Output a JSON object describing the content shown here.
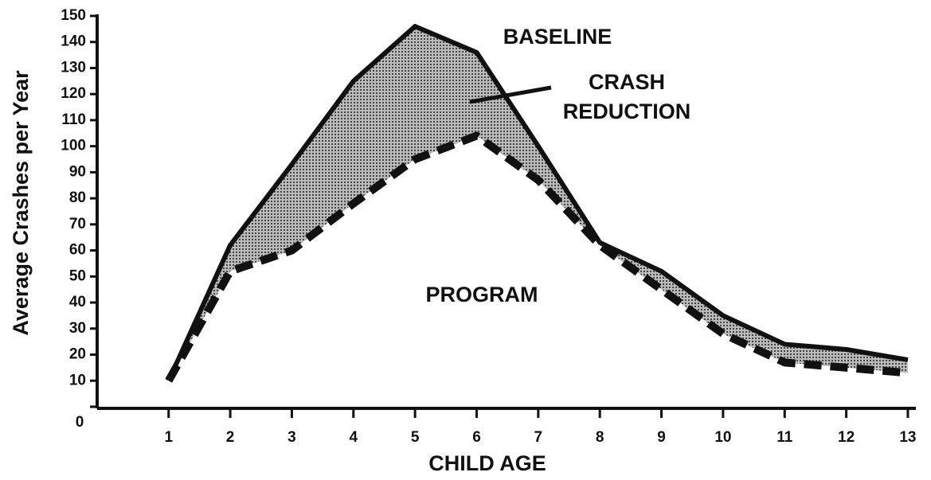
{
  "chart_data": {
    "type": "line",
    "x_label": "CHILD AGE",
    "y_label": "Average Crashes per Year",
    "annotations": [
      "BASELINE",
      "CRASH",
      "REDUCTION",
      "PROGRAM"
    ],
    "x": [
      1,
      2,
      3,
      4,
      5,
      6,
      7,
      8,
      9,
      10,
      11,
      12,
      13
    ],
    "series": [
      {
        "name": "BASELINE",
        "color": "#111111",
        "dash": false,
        "values": [
          10,
          62,
          93,
          125,
          146,
          136,
          100,
          63,
          52,
          35,
          24,
          22,
          18
        ]
      },
      {
        "name": "PROGRAM",
        "color": "#111111",
        "dash": true,
        "values": [
          10,
          52,
          60,
          78,
          95,
          104,
          87,
          62,
          45,
          28,
          17,
          15,
          13
        ]
      }
    ],
    "fill_between": true,
    "fill_color": "#777777",
    "xlim": [
      -0.16,
      13.13
    ],
    "ylim": [
      0,
      150
    ],
    "xticks": [
      1,
      2,
      3,
      4,
      5,
      6,
      7,
      8,
      9,
      10,
      11,
      12,
      13
    ],
    "yticks": [
      0,
      10,
      20,
      30,
      40,
      50,
      60,
      70,
      80,
      90,
      100,
      110,
      120,
      130,
      140,
      150
    ]
  }
}
